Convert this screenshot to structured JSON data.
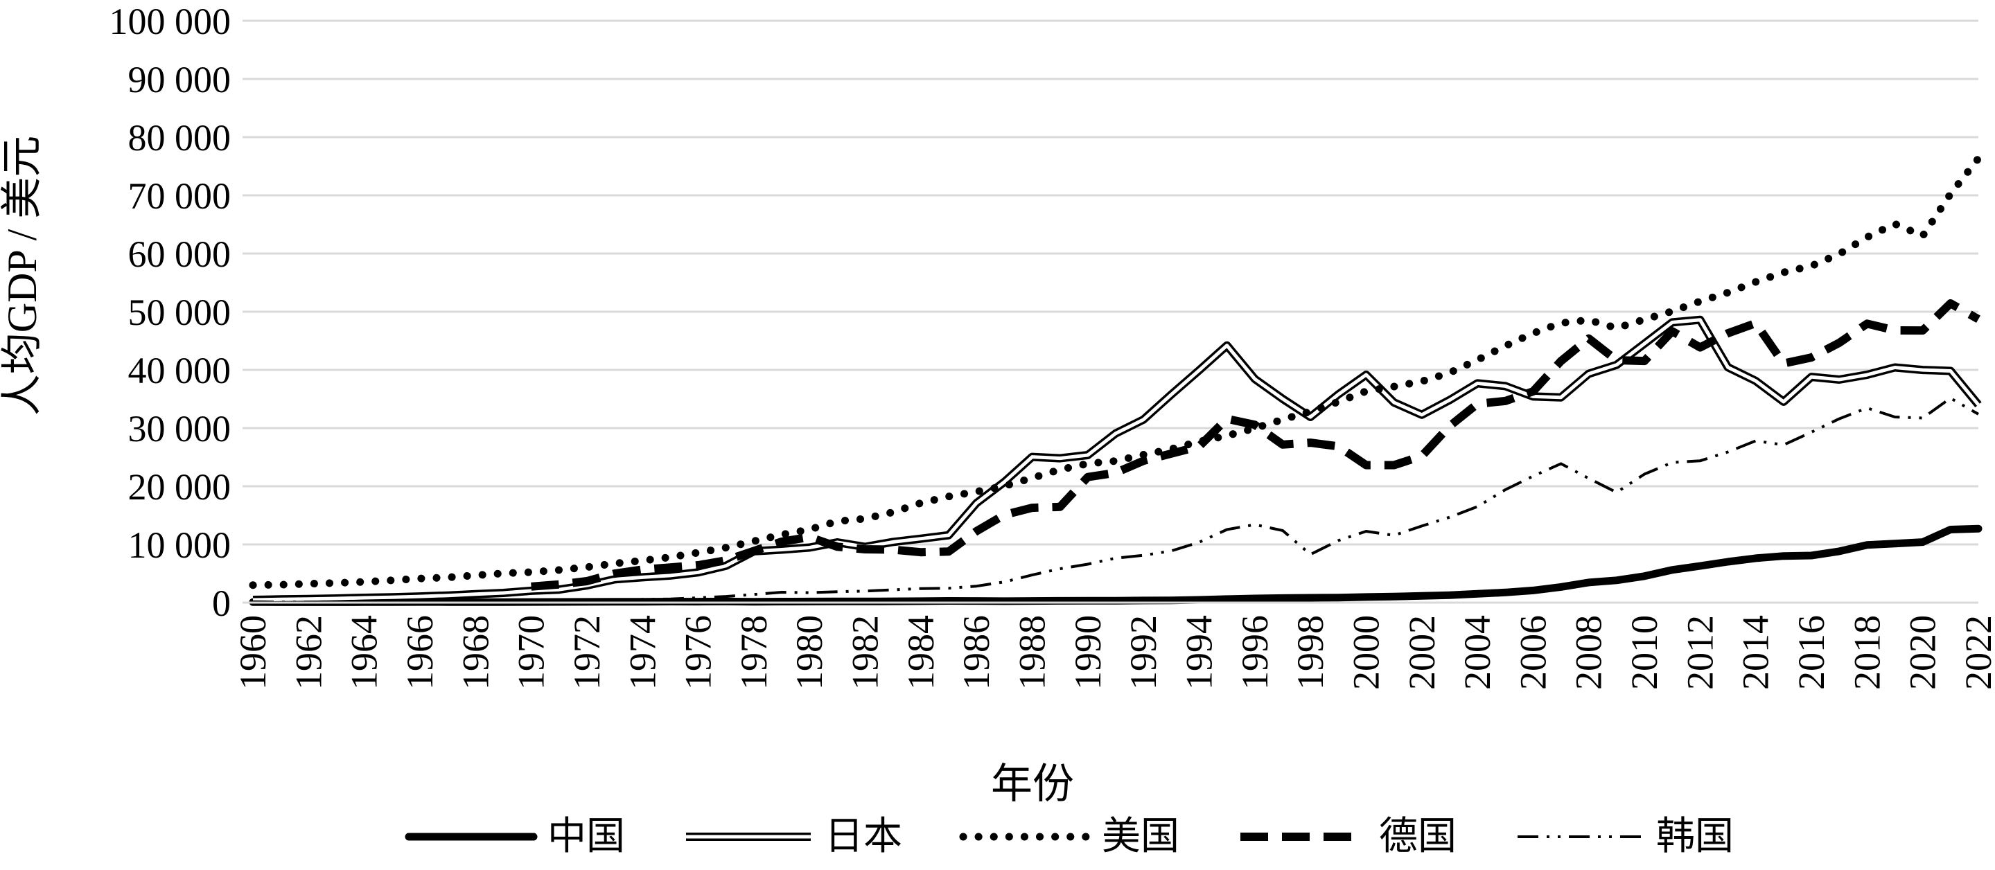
{
  "chart_data": {
    "type": "line",
    "title": "",
    "xlabel": "年份",
    "ylabel": "人均GDP / 美元",
    "ylim": [
      0,
      100000
    ],
    "yticks": [
      0,
      10000,
      20000,
      30000,
      40000,
      50000,
      60000,
      70000,
      80000,
      90000,
      100000
    ],
    "ytick_labels": [
      "0",
      "10 000",
      "20 000",
      "30 000",
      "40 000",
      "50 000",
      "60 000",
      "70 000",
      "80 000",
      "90 000",
      "100 000"
    ],
    "xlim": [
      1960,
      2022
    ],
    "xtick_labels": [
      "1960",
      "1962",
      "1964",
      "1966",
      "1968",
      "1970",
      "1972",
      "1974",
      "1976",
      "1978",
      "1980",
      "1982",
      "1984",
      "1986",
      "1988",
      "1990",
      "1992",
      "1994",
      "1996",
      "1998",
      "2000",
      "2002",
      "2004",
      "2006",
      "2008",
      "2010",
      "2012",
      "2014",
      "2016",
      "2018",
      "2020",
      "2022"
    ],
    "grid": "horizontal",
    "legend_position": "bottom",
    "x": [
      1960,
      1961,
      1962,
      1963,
      1964,
      1965,
      1966,
      1967,
      1968,
      1969,
      1970,
      1971,
      1972,
      1973,
      1974,
      1975,
      1976,
      1977,
      1978,
      1979,
      1980,
      1981,
      1982,
      1983,
      1984,
      1985,
      1986,
      1987,
      1988,
      1989,
      1990,
      1991,
      1992,
      1993,
      1994,
      1995,
      1996,
      1997,
      1998,
      1999,
      2000,
      2001,
      2002,
      2003,
      2004,
      2005,
      2006,
      2007,
      2008,
      2009,
      2010,
      2011,
      2012,
      2013,
      2014,
      2015,
      2016,
      2017,
      2018,
      2019,
      2020,
      2021,
      2022
    ],
    "series": [
      {
        "name": "中国",
        "style": "thick-solid",
        "color": "#000000",
        "values": [
          90,
          76,
          70,
          75,
          85,
          98,
          104,
          97,
          91,
          100,
          113,
          119,
          132,
          157,
          160,
          178,
          165,
          185,
          156,
          184,
          195,
          197,
          203,
          225,
          251,
          294,
          282,
          252,
          284,
          311,
          318,
          333,
          366,
          377,
          474,
          610,
          709,
          782,
          829,
          873,
          959,
          1053,
          1149,
          1289,
          1509,
          1753,
          2099,
          2694,
          3468,
          3832,
          4550,
          5614,
          6301,
          7020,
          7636,
          8016,
          8094,
          8817,
          9905,
          10144,
          10409,
          12556,
          12720
        ]
      },
      {
        "name": "日本",
        "style": "double-line",
        "color": "#000000",
        "values": [
          479,
          564,
          633,
          718,
          835,
          919,
          1058,
          1228,
          1450,
          1669,
          2038,
          2234,
          2950,
          3998,
          4354,
          4659,
          5197,
          6335,
          8821,
          9105,
          9463,
          10361,
          9578,
          10425,
          10985,
          11584,
          17112,
          20745,
          25051,
          24813,
          25359,
          29080,
          31464,
          35765,
          39933,
          44198,
          38437,
          35022,
          31903,
          35788,
          39169,
          34406,
          32289,
          34808,
          37688,
          37218,
          35434,
          35275,
          39339,
          40855,
          44508,
          48168,
          48603,
          40454,
          38109,
          34524,
          38794,
          38332,
          39159,
          40416,
          39987,
          39827,
          34017
        ]
      },
      {
        "name": "美国",
        "style": "dotted",
        "color": "#000000",
        "values": [
          3007,
          3067,
          3244,
          3375,
          3574,
          3828,
          4146,
          4336,
          4696,
          5032,
          5234,
          5609,
          6094,
          6726,
          7226,
          7801,
          8592,
          9453,
          10565,
          11674,
          12575,
          13976,
          14434,
          15544,
          17121,
          18237,
          19071,
          20039,
          21417,
          22857,
          23889,
          24342,
          25419,
          26387,
          27695,
          28691,
          29967,
          31459,
          32854,
          34515,
          36330,
          37134,
          38023,
          39496,
          41713,
          44115,
          46299,
          48050,
          48570,
          47195,
          48651,
          50066,
          51784,
          53291,
          55124,
          56763,
          57867,
          59915,
          62805,
          65095,
          63028,
          70249,
          76330
        ]
      },
      {
        "name": "德国",
        "style": "thick-dashed",
        "color": "#000000",
        "values": [
          null,
          null,
          null,
          null,
          null,
          null,
          null,
          null,
          null,
          null,
          2761,
          3133,
          3686,
          4984,
          5685,
          6044,
          6432,
          7266,
          8868,
          10480,
          11259,
          9603,
          9170,
          9105,
          8661,
          8777,
          12282,
          15089,
          16301,
          16447,
          21584,
          22327,
          24384,
          25622,
          26846,
          31594,
          30564,
          27161,
          27493,
          26866,
          23636,
          23628,
          25195,
          30338,
          34167,
          34649,
          36298,
          41514,
          45409,
          41650,
          41531,
          46645,
          43855,
          46299,
          48023,
          41103,
          42136,
          44652,
          47939,
          46794,
          46772,
          51426,
          48718
        ]
      },
      {
        "name": "韩国",
        "style": "dash-dot-dot",
        "color": "#000000",
        "values": [
          158,
          94,
          106,
          146,
          123,
          108,
          133,
          161,
          198,
          243,
          279,
          301,
          324,
          406,
          563,
          617,
          834,
          1055,
          1405,
          1783,
          1715,
          1883,
          1992,
          2199,
          2413,
          2482,
          2835,
          3555,
          4754,
          5817,
          6610,
          7637,
          8127,
          8885,
          10385,
          12565,
          13403,
          12398,
          8282,
          10672,
          12257,
          11561,
          13165,
          14673,
          16496,
          19403,
          21744,
          23882,
          21353,
          18939,
          22087,
          24080,
          24371,
          25890,
          27811,
          27105,
          29287,
          31601,
          33447,
          31902,
          31721,
          35142,
          32394
        ]
      }
    ]
  }
}
